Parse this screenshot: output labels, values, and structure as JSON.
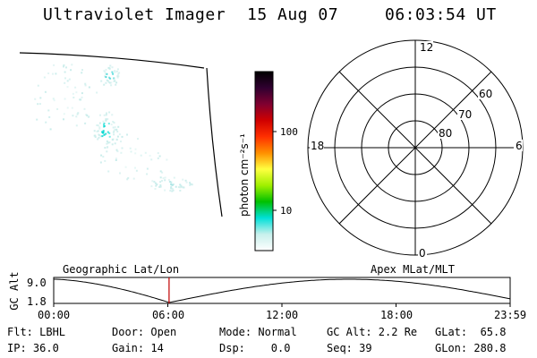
{
  "header": {
    "instrument": "Ultraviolet Imager",
    "date": "15 Aug 07",
    "time": "06:03:54 UT"
  },
  "colorbar": {
    "label": "photon cm⁻²s⁻¹",
    "ticks": [
      "100",
      "10"
    ],
    "colors": [
      "#ffffff",
      "#c8f0ec",
      "#00e0d8",
      "#00c000",
      "#a0f000",
      "#ffff40",
      "#ff9000",
      "#ff3000",
      "#d00000",
      "#800030",
      "#300030",
      "#000000"
    ]
  },
  "polar_plot": {
    "mlt_labels": {
      "top": "12",
      "left": "18",
      "right": "6",
      "bottom": "0"
    },
    "lat_labels": [
      "60",
      "70",
      "80"
    ]
  },
  "timeline": {
    "left_label": "Geographic Lat/Lon",
    "right_label": "Apex MLat/MLT",
    "ylabel": "GC Alt",
    "y_ticks": [
      "9.0",
      "1.8"
    ],
    "x_ticks": [
      "00:00",
      "06:00",
      "12:00",
      "18:00",
      "23:59"
    ],
    "current_fraction": 0.2527
  },
  "status": {
    "flt": "Flt: LBHL",
    "ip": "IP: 36.0",
    "door": "Door: Open",
    "gain": "Gain: 14",
    "mode": "Mode: Normal",
    "dsp": "Dsp:    0.0",
    "gcalt": "GC Alt: 2.2 Re",
    "seq": "Seq: 39",
    "glat": "GLat:  65.8",
    "glon": "GLon: 280.8"
  }
}
